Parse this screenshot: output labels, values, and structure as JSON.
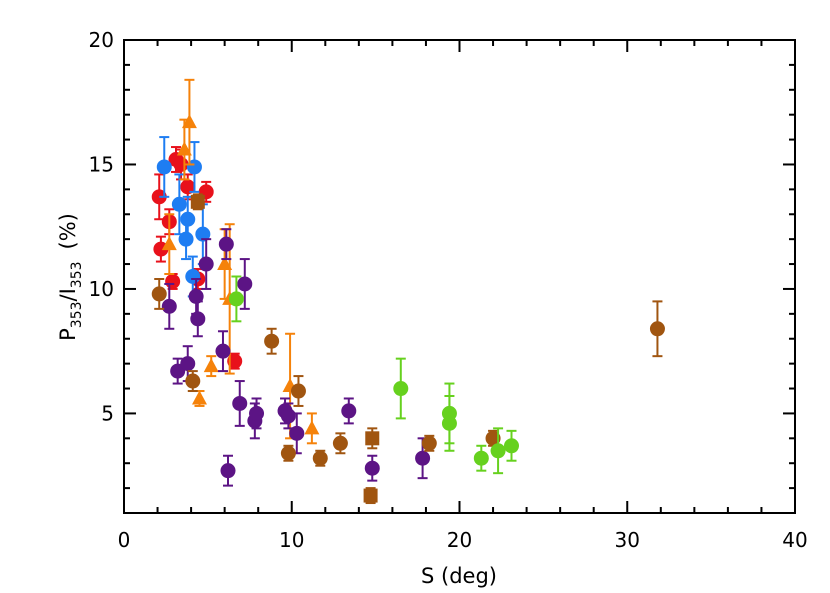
{
  "chart_data": {
    "type": "scatter",
    "title": "",
    "xlabel": "S (deg)",
    "ylabel": {
      "base1": "P",
      "sub1": "353",
      "slash": "/I",
      "sub2": "353",
      "unit": "(%)"
    },
    "xlim": [
      0,
      40
    ],
    "ylim": [
      1,
      20
    ],
    "xticks": [
      "0",
      "10",
      "20",
      "30",
      "40"
    ],
    "yticks": [
      "5",
      "10",
      "15",
      "20"
    ],
    "xtick_values": [
      0,
      10,
      20,
      30,
      40
    ],
    "ytick_values": [
      5,
      10,
      15,
      20
    ],
    "grid": false,
    "legend": "none",
    "series": [
      {
        "color": "#e8111b",
        "marker": "circle",
        "points": [
          {
            "x": 2.1,
            "y": 13.7,
            "err": 0.9
          },
          {
            "x": 2.2,
            "y": 11.6,
            "err": 0.5
          },
          {
            "x": 2.7,
            "y": 12.7,
            "err": 0.5
          },
          {
            "x": 2.9,
            "y": 10.3,
            "err": 0.3
          },
          {
            "x": 3.1,
            "y": 15.2,
            "err": 0.5
          },
          {
            "x": 3.4,
            "y": 15.0,
            "err": 0.6
          },
          {
            "x": 3.8,
            "y": 14.1,
            "err": 0.5
          },
          {
            "x": 4.4,
            "y": 10.4,
            "err": 0.4
          },
          {
            "x": 4.9,
            "y": 13.9,
            "err": 0.4
          },
          {
            "x": 6.6,
            "y": 7.1,
            "err": 0.3
          }
        ]
      },
      {
        "color": "#1e7df2",
        "marker": "circle",
        "points": [
          {
            "x": 2.4,
            "y": 14.9,
            "err": 1.2
          },
          {
            "x": 3.3,
            "y": 13.4,
            "err": 1.2
          },
          {
            "x": 3.8,
            "y": 12.8,
            "err": 0.9
          },
          {
            "x": 3.7,
            "y": 12.0,
            "err": 0.8
          },
          {
            "x": 4.2,
            "y": 14.9,
            "err": 1.0
          },
          {
            "x": 4.1,
            "y": 10.5,
            "err": 0.8
          },
          {
            "x": 4.7,
            "y": 12.2,
            "err": 1.2
          }
        ]
      },
      {
        "color": "#f5820a",
        "marker": "triangle",
        "points": [
          {
            "x": 2.7,
            "y": 11.8,
            "err": 1.2
          },
          {
            "x": 3.6,
            "y": 15.6,
            "err": 1.2
          },
          {
            "x": 3.9,
            "y": 16.7,
            "err": 1.7
          },
          {
            "x": 4.5,
            "y": 5.6,
            "err": 0.3
          },
          {
            "x": 5.2,
            "y": 6.9,
            "err": 0.4
          },
          {
            "x": 6.0,
            "y": 11.0,
            "err": 1.4
          },
          {
            "x": 6.3,
            "y": 9.6,
            "err": 3.0
          },
          {
            "x": 9.9,
            "y": 6.1,
            "err": 2.1
          },
          {
            "x": 11.2,
            "y": 4.4,
            "err": 0.6
          }
        ]
      },
      {
        "color": "#5c1485",
        "marker": "circle",
        "points": [
          {
            "x": 2.7,
            "y": 9.3,
            "err": 0.9
          },
          {
            "x": 3.2,
            "y": 6.7,
            "err": 0.5
          },
          {
            "x": 3.8,
            "y": 7.0,
            "err": 0.7
          },
          {
            "x": 4.3,
            "y": 9.7,
            "err": 0.7
          },
          {
            "x": 4.4,
            "y": 8.8,
            "err": 0.7
          },
          {
            "x": 4.9,
            "y": 11.0,
            "err": 1.0
          },
          {
            "x": 5.9,
            "y": 7.5,
            "err": 0.8
          },
          {
            "x": 6.1,
            "y": 11.8,
            "err": 0.6
          },
          {
            "x": 6.2,
            "y": 2.7,
            "err": 0.6
          },
          {
            "x": 6.9,
            "y": 5.4,
            "err": 0.9
          },
          {
            "x": 7.2,
            "y": 10.2,
            "err": 1.0
          },
          {
            "x": 7.8,
            "y": 4.7,
            "err": 0.7
          },
          {
            "x": 7.9,
            "y": 5.0,
            "err": 0.6
          },
          {
            "x": 9.6,
            "y": 5.1,
            "err": 0.5
          },
          {
            "x": 9.8,
            "y": 4.9,
            "err": 0.5
          },
          {
            "x": 10.3,
            "y": 4.2,
            "err": 0.8
          },
          {
            "x": 13.4,
            "y": 5.1,
            "err": 0.5
          },
          {
            "x": 14.8,
            "y": 2.8,
            "err": 0.5
          },
          {
            "x": 17.8,
            "y": 3.2,
            "err": 0.8
          }
        ]
      },
      {
        "color": "#a05510",
        "marker": "circle",
        "points": [
          {
            "x": 2.1,
            "y": 9.8,
            "err": 0.6
          },
          {
            "x": 4.1,
            "y": 6.3,
            "err": 0.4
          },
          {
            "x": 8.8,
            "y": 7.9,
            "err": 0.5
          },
          {
            "x": 9.8,
            "y": 3.4,
            "err": 0.3
          },
          {
            "x": 10.4,
            "y": 5.9,
            "err": 0.6
          },
          {
            "x": 11.7,
            "y": 3.2,
            "err": 0.3
          },
          {
            "x": 12.9,
            "y": 3.8,
            "err": 0.4
          },
          {
            "x": 18.2,
            "y": 3.8,
            "err": 0.3
          },
          {
            "x": 22.0,
            "y": 4.0,
            "err": 0.3
          },
          {
            "x": 31.8,
            "y": 8.4,
            "err": 1.1
          }
        ]
      },
      {
        "color": "#a05510",
        "marker": "square",
        "points": [
          {
            "x": 4.4,
            "y": 13.5,
            "err": 0.3
          },
          {
            "x": 14.8,
            "y": 4.0,
            "err": 0.4
          },
          {
            "x": 14.7,
            "y": 1.7,
            "err": 0.3
          }
        ]
      },
      {
        "color": "#66d11e",
        "marker": "circle",
        "points": [
          {
            "x": 6.7,
            "y": 9.6,
            "err": 0.9
          },
          {
            "x": 16.5,
            "y": 6.0,
            "err": 1.2
          },
          {
            "x": 19.4,
            "y": 5.0,
            "err": 1.2
          },
          {
            "x": 19.4,
            "y": 4.6,
            "err": 1.1
          },
          {
            "x": 21.3,
            "y": 3.2,
            "err": 0.5
          },
          {
            "x": 22.3,
            "y": 3.5,
            "err": 0.9
          },
          {
            "x": 23.1,
            "y": 3.7,
            "err": 0.6
          }
        ]
      }
    ]
  }
}
